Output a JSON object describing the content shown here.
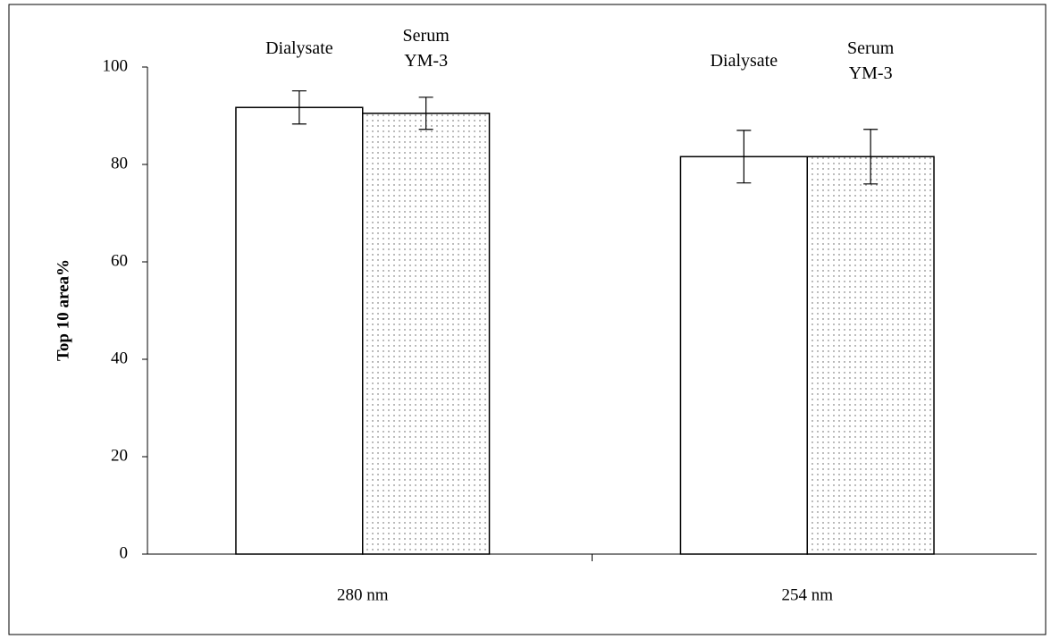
{
  "chart_data": {
    "type": "bar",
    "categories": [
      "280 nm",
      "254 nm"
    ],
    "series": [
      {
        "name": "Dialysate",
        "color": "#ffffff",
        "values": [
          91.7,
          81.6
        ],
        "errors": [
          3.4,
          5.4
        ]
      },
      {
        "name": "Serum YM-3",
        "color": "#ffffff",
        "pattern": "dots",
        "values": [
          90.5,
          81.6
        ],
        "errors": [
          3.3,
          5.6
        ]
      }
    ],
    "y_label": "Top 10 area%",
    "ylim": [
      0,
      100
    ],
    "yticks": [
      0,
      20,
      40,
      60,
      80,
      100
    ],
    "grid": false
  }
}
